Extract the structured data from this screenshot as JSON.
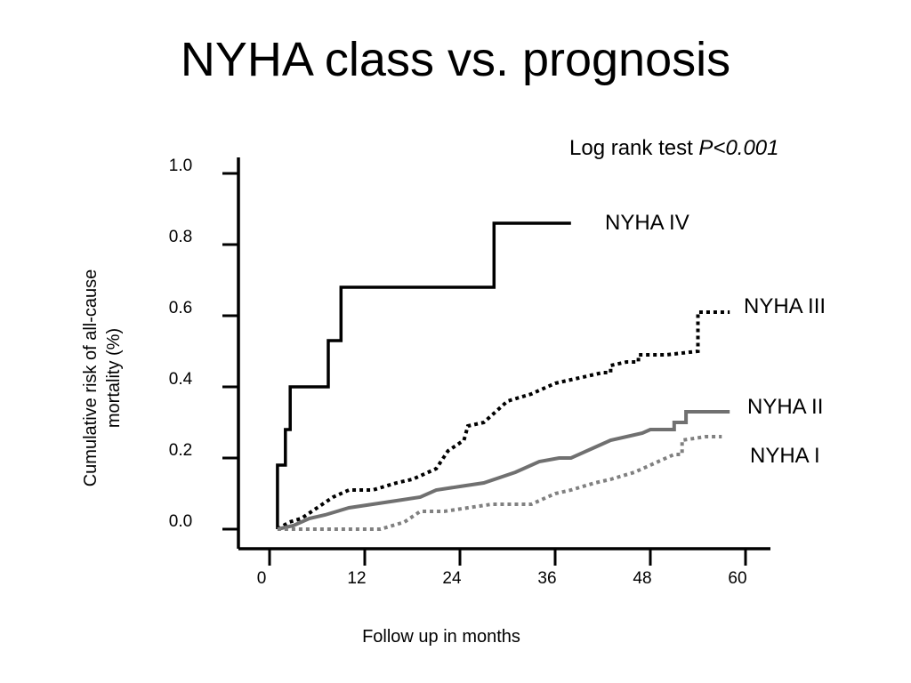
{
  "slide": {
    "title": "NYHA class vs. prognosis"
  },
  "chart_data": {
    "type": "line",
    "title": "NYHA class vs. prognosis",
    "xlabel": "Follow up in months",
    "ylabel": [
      "Cumulative risk of all-cause",
      "mortality (%)"
    ],
    "xlim": [
      0,
      60
    ],
    "ylim": [
      0,
      1.0
    ],
    "xticks": [
      "0",
      "12",
      "24",
      "36",
      "48",
      "60"
    ],
    "xtick_values": [
      0,
      12,
      24,
      36,
      48,
      60
    ],
    "yticks": [
      "0.0",
      "0.2",
      "0.4",
      "0.6",
      "0.8",
      "1.0"
    ],
    "ytick_values": [
      0,
      0.2,
      0.4,
      0.6,
      0.8,
      1.0
    ],
    "grid": false,
    "annotation": {
      "text": "Log rank test ",
      "italic": "P<0.001"
    },
    "series": [
      {
        "name": "NYHA IV",
        "style": "solid",
        "color": "#000000",
        "step": true,
        "points": [
          [
            1,
            0
          ],
          [
            1,
            0.18
          ],
          [
            2,
            0.18
          ],
          [
            2,
            0.28
          ],
          [
            2.6,
            0.28
          ],
          [
            2.6,
            0.4
          ],
          [
            7.4,
            0.4
          ],
          [
            7.4,
            0.53
          ],
          [
            9,
            0.53
          ],
          [
            9,
            0.68
          ],
          [
            28.3,
            0.68
          ],
          [
            28.3,
            0.86
          ],
          [
            38,
            0.86
          ]
        ]
      },
      {
        "name": "NYHA III",
        "style": "dotted",
        "color": "#000000",
        "step": false,
        "points": [
          [
            1,
            0
          ],
          [
            2.5,
            0.02
          ],
          [
            4,
            0.03
          ],
          [
            6,
            0.06
          ],
          [
            8,
            0.09
          ],
          [
            10,
            0.11
          ],
          [
            13,
            0.11
          ],
          [
            16,
            0.13
          ],
          [
            18,
            0.14
          ],
          [
            21,
            0.17
          ],
          [
            22.5,
            0.22
          ],
          [
            24.5,
            0.25
          ],
          [
            25,
            0.29
          ],
          [
            27,
            0.3
          ],
          [
            30,
            0.36
          ],
          [
            33,
            0.38
          ],
          [
            36,
            0.41
          ],
          [
            40,
            0.43
          ],
          [
            42,
            0.44
          ],
          [
            43,
            0.44
          ],
          [
            43,
            0.46
          ],
          [
            45,
            0.47
          ],
          [
            46.5,
            0.47
          ],
          [
            46.5,
            0.49
          ],
          [
            50,
            0.49
          ],
          [
            54,
            0.5
          ],
          [
            54,
            0.61
          ],
          [
            58,
            0.61
          ]
        ]
      },
      {
        "name": "NYHA II",
        "style": "solid",
        "color": "#707070",
        "step": false,
        "points": [
          [
            1,
            0
          ],
          [
            3,
            0.01
          ],
          [
            5,
            0.03
          ],
          [
            7,
            0.04
          ],
          [
            10,
            0.06
          ],
          [
            13,
            0.07
          ],
          [
            16,
            0.08
          ],
          [
            19,
            0.09
          ],
          [
            21,
            0.11
          ],
          [
            24,
            0.12
          ],
          [
            27,
            0.13
          ],
          [
            31,
            0.16
          ],
          [
            34,
            0.19
          ],
          [
            36.5,
            0.2
          ],
          [
            38,
            0.2
          ],
          [
            41,
            0.23
          ],
          [
            43,
            0.25
          ],
          [
            45,
            0.26
          ],
          [
            47,
            0.27
          ],
          [
            48,
            0.28
          ],
          [
            51,
            0.28
          ],
          [
            51,
            0.3
          ],
          [
            52.5,
            0.3
          ],
          [
            52.5,
            0.33
          ],
          [
            58,
            0.33
          ]
        ]
      },
      {
        "name": "NYHA I",
        "style": "dotted",
        "color": "#808080",
        "step": false,
        "points": [
          [
            1,
            0
          ],
          [
            5,
            0
          ],
          [
            10,
            0
          ],
          [
            14,
            0
          ],
          [
            17,
            0.02
          ],
          [
            19,
            0.05
          ],
          [
            22,
            0.05
          ],
          [
            25,
            0.06
          ],
          [
            28,
            0.07
          ],
          [
            33,
            0.07
          ],
          [
            36,
            0.1
          ],
          [
            38,
            0.11
          ],
          [
            41,
            0.13
          ],
          [
            43,
            0.14
          ],
          [
            46,
            0.16
          ],
          [
            49,
            0.19
          ],
          [
            51,
            0.21
          ],
          [
            52,
            0.21
          ],
          [
            52,
            0.25
          ],
          [
            55,
            0.26
          ],
          [
            57,
            0.26
          ]
        ]
      }
    ]
  }
}
